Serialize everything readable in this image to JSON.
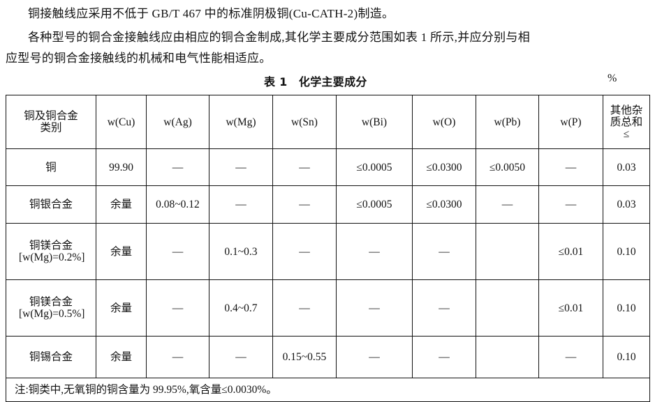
{
  "paragraphs": [
    "铜接触线应采用不低于 GB/T 467 中的标准阴极铜(Cu-CATH-2)制造。",
    "各种型号的铜合金接触线应由相应的铜合金制成,其化学主要成分范围如表 1 所示,并应分别与相",
    "应型号的铜合金接触线的机械和电气性能相适应。"
  ],
  "table": {
    "caption": "表 1　化学主要成分",
    "unit": "%",
    "headers": [
      "铜及铜合金类别",
      "w(Cu)",
      "w(Ag)",
      "w(Mg)",
      "w(Sn)",
      "w(Bi)",
      "w(O)",
      "w(Pb)",
      "w(P)",
      "其他杂质总和≤"
    ],
    "rows": [
      [
        "铜",
        "99.90",
        "—",
        "—",
        "—",
        "≤0.0005",
        "≤0.0300",
        "≤0.0050",
        "—",
        "0.03"
      ],
      [
        "铜银合金",
        "余量",
        "0.08~0.12",
        "—",
        "—",
        "≤0.0005",
        "≤0.0300",
        "—",
        "—",
        "0.03"
      ],
      [
        "铜镁合金[w(Mg)=0.2%]",
        "余量",
        "—",
        "0.1~0.3",
        "—",
        "—",
        "—",
        "",
        "≤0.01",
        "0.10"
      ],
      [
        "铜镁合金[w(Mg)=0.5%]",
        "余量",
        "—",
        "0.4~0.7",
        "—",
        "—",
        "—",
        "",
        "≤0.01",
        "0.10"
      ],
      [
        "铜锡合金",
        "余量",
        "—",
        "—",
        "0.15~0.55",
        "—",
        "—",
        "",
        "—",
        "0.10"
      ]
    ],
    "note": "注:铜类中,无氧铜的铜含量为 99.95%,氧含量≤0.0030%。"
  }
}
